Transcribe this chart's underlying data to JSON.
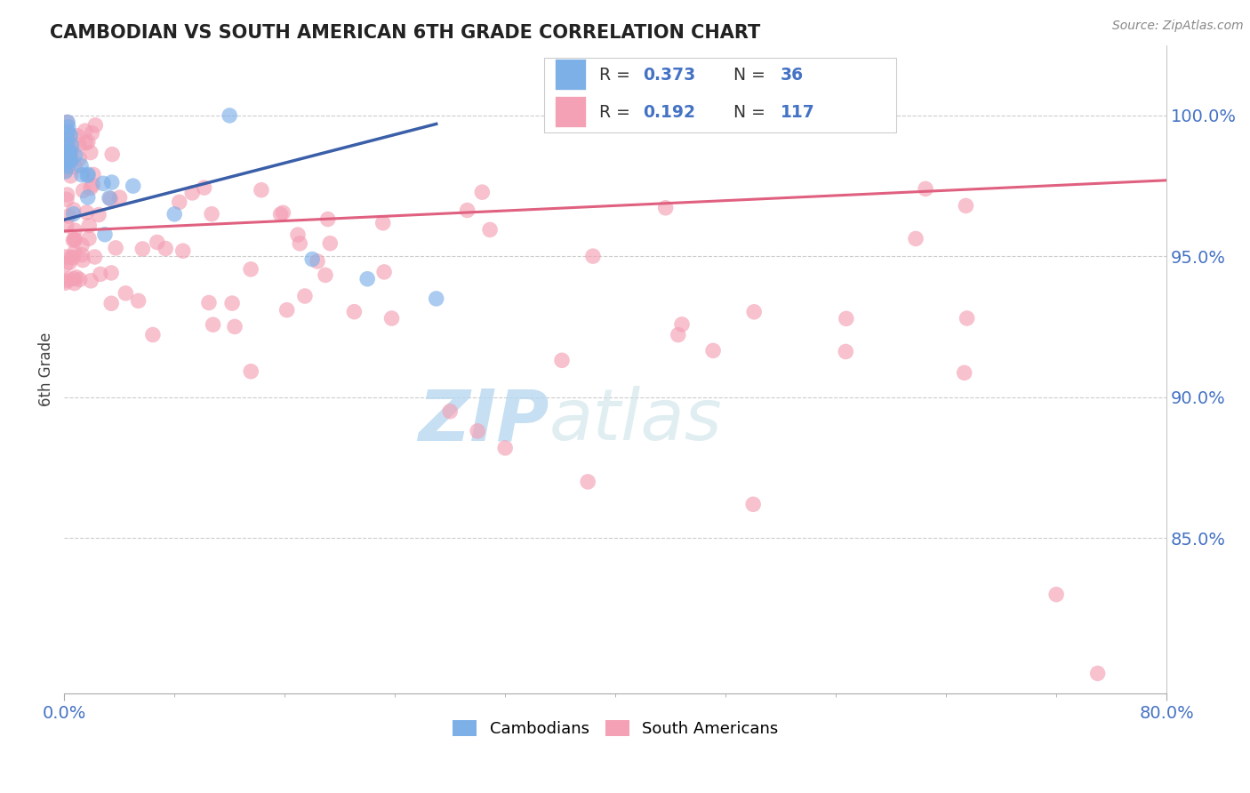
{
  "title": "CAMBODIAN VS SOUTH AMERICAN 6TH GRADE CORRELATION CHART",
  "source": "Source: ZipAtlas.com",
  "ylabel": "6th Grade",
  "right_yticks": [
    "100.0%",
    "95.0%",
    "90.0%",
    "85.0%"
  ],
  "right_ytick_vals": [
    1.0,
    0.95,
    0.9,
    0.85
  ],
  "xlim": [
    0.0,
    0.8
  ],
  "ylim": [
    0.795,
    1.025
  ],
  "cambodian_color": "#7EB0E8",
  "south_american_color": "#F4A0B5",
  "trendline_cambodian_color": "#3A5FA8",
  "trendline_south_color": "#E06080",
  "watermark_zip": "ZIP",
  "watermark_atlas": "atlas",
  "grid_color": "#cccccc",
  "grid_yticks": [
    1.0,
    0.95,
    0.9,
    0.85
  ]
}
